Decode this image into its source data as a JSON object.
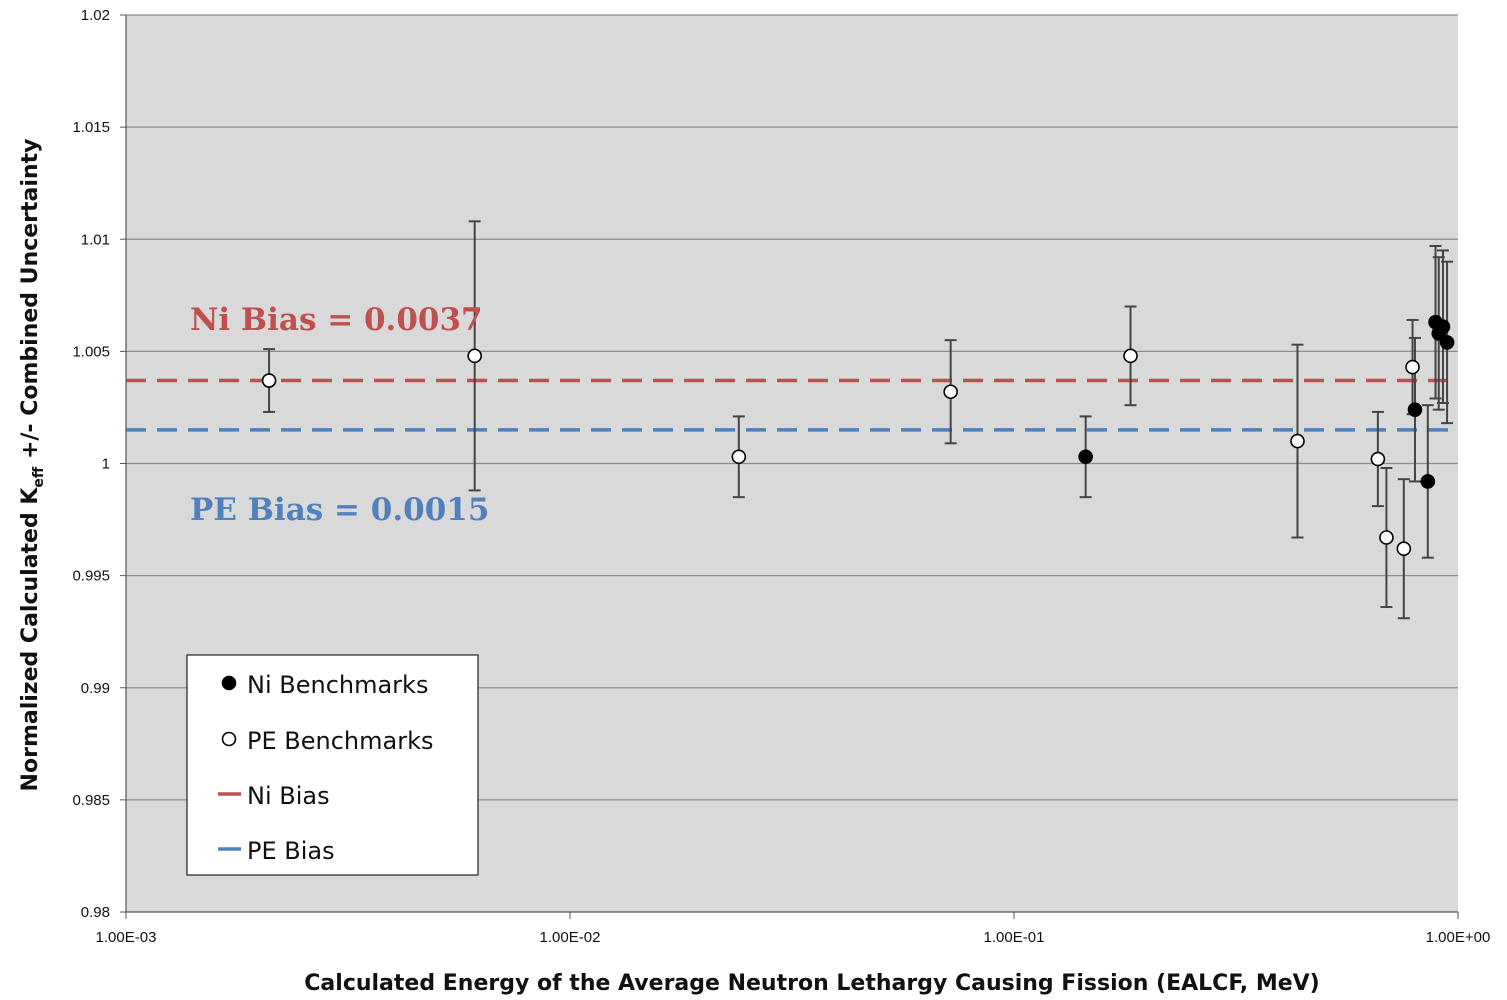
{
  "chart_data": {
    "type": "scatter",
    "title": "",
    "xlabel": "Calculated Energy of the Average Neutron Lethargy Causing Fission (EALCF, MeV)",
    "ylabel": {
      "prefix": "Normalized Calculated K",
      "subscript": "eff",
      "suffix": " +/- Combined Uncertainty"
    },
    "x_scale": "log",
    "xlim": [
      0.001,
      1.0
    ],
    "ylim": [
      0.98,
      1.02
    ],
    "grid": true,
    "y_ticks": [
      0.98,
      0.985,
      0.99,
      0.995,
      1,
      1.005,
      1.01,
      1.015,
      1.02
    ],
    "y_tick_labels": [
      "0.98",
      "0.985",
      "0.99",
      "0.995",
      "1",
      "1.005",
      "1.01",
      "1.015",
      "1.02"
    ],
    "x_ticks": [
      0.001,
      0.01,
      0.1,
      1.0
    ],
    "x_tick_labels": [
      "1.00E-03",
      "1.00E-02",
      "1.00E-01",
      "1.00E+00"
    ],
    "series": [
      {
        "name": "Ni Benchmarks",
        "marker": "filled-circle",
        "color": "#000000",
        "points": [
          {
            "x": 0.145,
            "y": 1.0003,
            "err": 0.0018
          },
          {
            "x": 0.8,
            "y": 1.0024,
            "err": 0.0032
          },
          {
            "x": 0.855,
            "y": 0.9992,
            "err": 0.0034
          },
          {
            "x": 0.89,
            "y": 1.0063,
            "err": 0.0034
          },
          {
            "x": 0.905,
            "y": 1.0058,
            "err": 0.0034
          },
          {
            "x": 0.925,
            "y": 1.0061,
            "err": 0.0034
          },
          {
            "x": 0.945,
            "y": 1.0054,
            "err": 0.0036
          }
        ]
      },
      {
        "name": "PE Benchmarks",
        "marker": "open-circle",
        "color": "#000000",
        "points": [
          {
            "x": 0.0021,
            "y": 1.0037,
            "err": 0.0014
          },
          {
            "x": 0.0061,
            "y": 1.0048,
            "err": 0.006
          },
          {
            "x": 0.024,
            "y": 1.0003,
            "err": 0.0018
          },
          {
            "x": 0.072,
            "y": 1.0032,
            "err": 0.0023
          },
          {
            "x": 0.183,
            "y": 1.0048,
            "err": 0.0022
          },
          {
            "x": 0.435,
            "y": 1.001,
            "err": 0.0043
          },
          {
            "x": 0.66,
            "y": 1.0002,
            "err": 0.0021
          },
          {
            "x": 0.69,
            "y": 0.9967,
            "err": 0.0031
          },
          {
            "x": 0.755,
            "y": 0.9962,
            "err": 0.0031
          },
          {
            "x": 0.79,
            "y": 1.0043,
            "err": 0.0021
          }
        ]
      }
    ],
    "bias_lines": [
      {
        "name": "Ni Bias",
        "y": 1.0037,
        "color": "#c0504d",
        "label": "Ni Bias = 0.0037"
      },
      {
        "name": "PE Bias",
        "y": 1.0015,
        "color": "#4f81bd",
        "label": "PE Bias = 0.0015"
      }
    ],
    "legend": {
      "placement": "bottom-left",
      "entries": [
        "Ni Benchmarks",
        "PE Benchmarks",
        "Ni Bias",
        "PE Bias"
      ]
    },
    "colors": {
      "plot_background": "#d9d9d9",
      "gridline": "#8c8c8c",
      "ni_bias": "#c0504d",
      "pe_bias": "#4f81bd"
    }
  }
}
